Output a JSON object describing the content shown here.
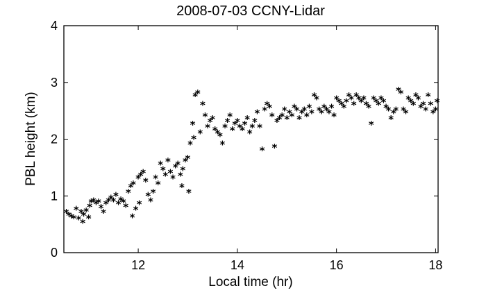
{
  "chart_data": {
    "type": "scatter",
    "title": "2008-07-03 CCNY-Lidar",
    "xlabel": "Local time (hr)",
    "ylabel": "PBL height (km)",
    "xlim": [
      10.5,
      18.05
    ],
    "ylim": [
      0,
      4
    ],
    "xticks": [
      12,
      14,
      16,
      18
    ],
    "yticks": [
      0,
      1,
      2,
      3,
      4
    ],
    "marker": "*",
    "marker_color": "#000000",
    "grid": false,
    "points": [
      [
        10.55,
        0.7
      ],
      [
        10.6,
        0.65
      ],
      [
        10.65,
        0.62
      ],
      [
        10.7,
        0.6
      ],
      [
        10.75,
        0.75
      ],
      [
        10.8,
        0.58
      ],
      [
        10.85,
        0.7
      ],
      [
        10.88,
        0.52
      ],
      [
        10.9,
        0.65
      ],
      [
        10.95,
        0.72
      ],
      [
        11.0,
        0.6
      ],
      [
        11.02,
        0.8
      ],
      [
        11.05,
        0.88
      ],
      [
        11.1,
        0.9
      ],
      [
        11.15,
        0.85
      ],
      [
        11.2,
        0.88
      ],
      [
        11.25,
        0.78
      ],
      [
        11.3,
        0.7
      ],
      [
        11.35,
        0.85
      ],
      [
        11.4,
        0.9
      ],
      [
        11.45,
        0.95
      ],
      [
        11.5,
        0.9
      ],
      [
        11.55,
        1.0
      ],
      [
        11.6,
        0.85
      ],
      [
        11.65,
        0.92
      ],
      [
        11.7,
        0.88
      ],
      [
        11.75,
        0.8
      ],
      [
        11.8,
        1.05
      ],
      [
        11.85,
        1.15
      ],
      [
        11.88,
        0.62
      ],
      [
        11.9,
        1.2
      ],
      [
        11.95,
        0.75
      ],
      [
        12.0,
        1.3
      ],
      [
        12.02,
        0.85
      ],
      [
        12.05,
        1.35
      ],
      [
        12.1,
        1.4
      ],
      [
        12.15,
        1.25
      ],
      [
        12.2,
        1.0
      ],
      [
        12.25,
        0.9
      ],
      [
        12.3,
        1.05
      ],
      [
        12.35,
        1.3
      ],
      [
        12.4,
        1.2
      ],
      [
        12.45,
        1.55
      ],
      [
        12.5,
        1.45
      ],
      [
        12.55,
        1.35
      ],
      [
        12.6,
        1.6
      ],
      [
        12.65,
        1.4
      ],
      [
        12.7,
        1.3
      ],
      [
        12.75,
        1.5
      ],
      [
        12.8,
        1.55
      ],
      [
        12.85,
        1.35
      ],
      [
        12.88,
        1.15
      ],
      [
        12.9,
        1.45
      ],
      [
        12.95,
        1.6
      ],
      [
        13.0,
        1.65
      ],
      [
        13.02,
        1.05
      ],
      [
        13.05,
        1.9
      ],
      [
        13.1,
        2.25
      ],
      [
        13.12,
        2.0
      ],
      [
        13.15,
        2.75
      ],
      [
        13.2,
        2.8
      ],
      [
        13.25,
        2.1
      ],
      [
        13.3,
        2.6
      ],
      [
        13.35,
        2.4
      ],
      [
        13.4,
        2.2
      ],
      [
        13.45,
        2.3
      ],
      [
        13.5,
        2.35
      ],
      [
        13.55,
        2.15
      ],
      [
        13.6,
        2.1
      ],
      [
        13.65,
        2.05
      ],
      [
        13.7,
        1.9
      ],
      [
        13.75,
        2.2
      ],
      [
        13.8,
        2.3
      ],
      [
        13.85,
        2.4
      ],
      [
        13.9,
        2.15
      ],
      [
        13.95,
        2.25
      ],
      [
        14.0,
        2.3
      ],
      [
        14.05,
        2.2
      ],
      [
        14.1,
        2.15
      ],
      [
        14.15,
        2.25
      ],
      [
        14.2,
        2.35
      ],
      [
        14.25,
        2.1
      ],
      [
        14.3,
        2.2
      ],
      [
        14.35,
        2.3
      ],
      [
        14.4,
        2.45
      ],
      [
        14.45,
        2.2
      ],
      [
        14.5,
        1.8
      ],
      [
        14.55,
        2.5
      ],
      [
        14.6,
        2.6
      ],
      [
        14.65,
        2.55
      ],
      [
        14.7,
        2.4
      ],
      [
        14.75,
        1.85
      ],
      [
        14.8,
        2.3
      ],
      [
        14.85,
        2.35
      ],
      [
        14.9,
        2.4
      ],
      [
        14.95,
        2.5
      ],
      [
        15.0,
        2.35
      ],
      [
        15.05,
        2.45
      ],
      [
        15.1,
        2.4
      ],
      [
        15.15,
        2.55
      ],
      [
        15.2,
        2.5
      ],
      [
        15.25,
        2.35
      ],
      [
        15.3,
        2.45
      ],
      [
        15.35,
        2.5
      ],
      [
        15.4,
        2.4
      ],
      [
        15.45,
        2.55
      ],
      [
        15.5,
        2.45
      ],
      [
        15.55,
        2.75
      ],
      [
        15.6,
        2.7
      ],
      [
        15.65,
        2.5
      ],
      [
        15.7,
        2.45
      ],
      [
        15.75,
        2.55
      ],
      [
        15.8,
        2.5
      ],
      [
        15.85,
        2.45
      ],
      [
        15.9,
        2.55
      ],
      [
        15.95,
        2.4
      ],
      [
        16.0,
        2.7
      ],
      [
        16.05,
        2.65
      ],
      [
        16.1,
        2.6
      ],
      [
        16.15,
        2.55
      ],
      [
        16.2,
        2.65
      ],
      [
        16.25,
        2.75
      ],
      [
        16.3,
        2.7
      ],
      [
        16.35,
        2.6
      ],
      [
        16.4,
        2.75
      ],
      [
        16.45,
        2.7
      ],
      [
        16.5,
        2.65
      ],
      [
        16.55,
        2.7
      ],
      [
        16.6,
        2.6
      ],
      [
        16.65,
        2.55
      ],
      [
        16.7,
        2.25
      ],
      [
        16.75,
        2.7
      ],
      [
        16.8,
        2.65
      ],
      [
        16.85,
        2.6
      ],
      [
        16.9,
        2.7
      ],
      [
        16.95,
        2.65
      ],
      [
        17.0,
        2.55
      ],
      [
        17.05,
        2.5
      ],
      [
        17.1,
        2.35
      ],
      [
        17.15,
        2.45
      ],
      [
        17.2,
        2.5
      ],
      [
        17.25,
        2.85
      ],
      [
        17.3,
        2.8
      ],
      [
        17.35,
        2.5
      ],
      [
        17.4,
        2.45
      ],
      [
        17.45,
        2.7
      ],
      [
        17.5,
        2.65
      ],
      [
        17.55,
        2.6
      ],
      [
        17.6,
        2.75
      ],
      [
        17.65,
        2.7
      ],
      [
        17.7,
        2.55
      ],
      [
        17.75,
        2.6
      ],
      [
        17.8,
        2.5
      ],
      [
        17.85,
        2.75
      ],
      [
        17.9,
        2.6
      ],
      [
        17.95,
        2.45
      ],
      [
        18.0,
        2.5
      ],
      [
        18.03,
        2.65
      ]
    ]
  }
}
